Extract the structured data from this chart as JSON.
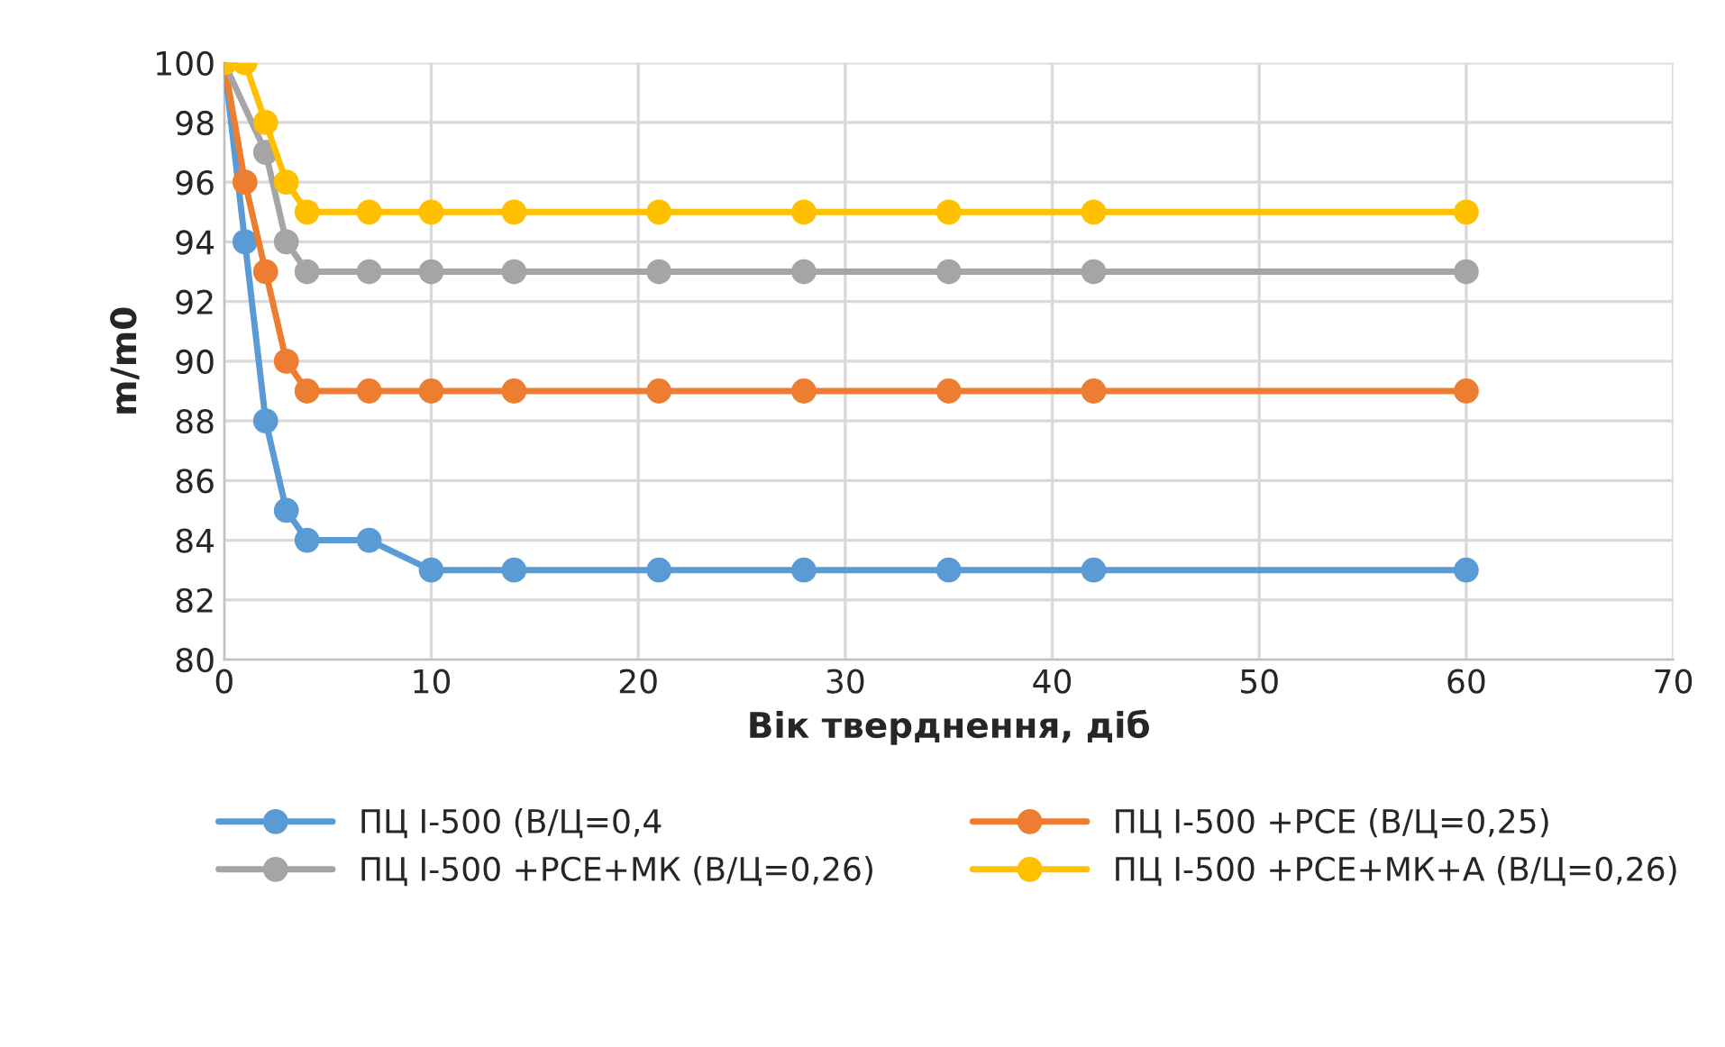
{
  "chart_data": {
    "type": "line",
    "xlabel": "Вік тверднення, діб",
    "ylabel": "m/m0",
    "x": [
      0,
      1,
      2,
      3,
      4,
      7,
      10,
      14,
      21,
      28,
      35,
      42,
      60
    ],
    "series": [
      {
        "name": "ПЦ І-500 (В/Ц=0,4",
        "color": "#5b9bd5",
        "values": [
          100,
          94,
          88,
          85,
          84,
          84,
          83,
          83,
          83,
          83,
          83,
          83,
          83
        ]
      },
      {
        "name": "ПЦ І-500 +РСЕ (В/Ц=0,25)",
        "color": "#ed7d31",
        "values": [
          100,
          96,
          93,
          90,
          89,
          89,
          89,
          89,
          89,
          89,
          89,
          89,
          89
        ]
      },
      {
        "name": "ПЦ І-500 +РСЕ+МК (В/Ц=0,26)",
        "color": "#a5a5a5",
        "values": [
          100,
          null,
          97,
          94,
          93,
          93,
          93,
          93,
          93,
          93,
          93,
          93,
          93
        ]
      },
      {
        "name": "ПЦ І-500 +РСЕ+МК+А (В/Ц=0,26)",
        "color": "#ffc000",
        "values": [
          100,
          100,
          98,
          96,
          95,
          95,
          95,
          95,
          95,
          95,
          95,
          95,
          95
        ]
      }
    ],
    "xlim": [
      0,
      70
    ],
    "xticks": [
      0,
      10,
      20,
      30,
      40,
      50,
      60,
      70
    ],
    "ylim": [
      80,
      100
    ],
    "yticks": [
      80,
      82,
      84,
      86,
      88,
      90,
      92,
      94,
      96,
      98,
      100
    ],
    "grid": true,
    "legend": "bottom",
    "marker": "circle",
    "line_style": "solid"
  }
}
